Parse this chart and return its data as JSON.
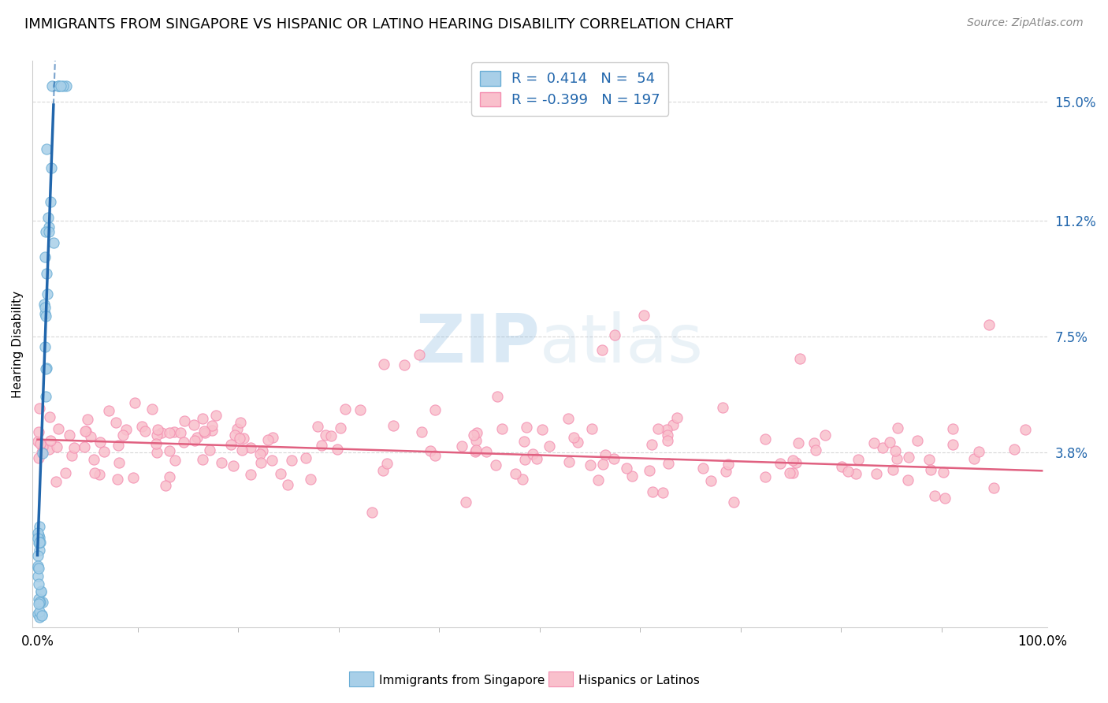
{
  "title": "IMMIGRANTS FROM SINGAPORE VS HISPANIC OR LATINO HEARING DISABILITY CORRELATION CHART",
  "source": "Source: ZipAtlas.com",
  "ylabel": "Hearing Disability",
  "ytick_vals": [
    0.038,
    0.075,
    0.112,
    0.15
  ],
  "ytick_labels": [
    "3.8%",
    "7.5%",
    "11.2%",
    "15.0%"
  ],
  "xlim": [
    -0.005,
    1.005
  ],
  "ylim": [
    -0.018,
    0.163
  ],
  "blue_R": 0.414,
  "blue_N": 54,
  "pink_R": -0.399,
  "pink_N": 197,
  "blue_color": "#a8cfe8",
  "blue_edge_color": "#6baed6",
  "blue_line_color": "#2166ac",
  "pink_color": "#f9c0cc",
  "pink_edge_color": "#f48fb1",
  "pink_line_color": "#e06080",
  "background_color": "#ffffff",
  "grid_color": "#d8d8d8",
  "legend_label_blue": "Immigrants from Singapore",
  "legend_label_pink": "Hispanics or Latinos",
  "title_fontsize": 13,
  "source_fontsize": 10,
  "axis_label_fontsize": 11,
  "tick_fontsize": 12,
  "legend_fontsize": 13,
  "blue_slope": 9.0,
  "blue_intercept": 0.005,
  "pink_slope": -0.01,
  "pink_intercept": 0.042
}
